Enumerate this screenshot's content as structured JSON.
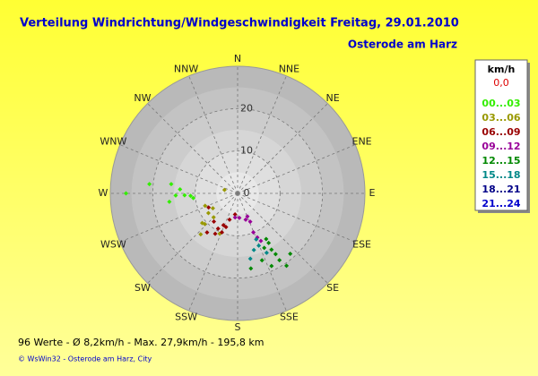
{
  "chart_data": {
    "type": "polar_scatter",
    "title": "Verteilung Windrichtung/Windgeschwindigkeit  Freitag, 29.01.2010",
    "subtitle": "Osterode am Harz",
    "directions": [
      "N",
      "NNE",
      "NE",
      "ENE",
      "E",
      "ESE",
      "SE",
      "SSE",
      "S",
      "SSW",
      "SW",
      "WSW",
      "W",
      "WNW",
      "NW",
      "NNW"
    ],
    "rlim": [
      0,
      30
    ],
    "rticks": [
      0,
      10,
      20
    ],
    "legend_title": "km/h",
    "calm_label": "0,0",
    "series": [
      {
        "name": "00...03",
        "color": "#33ee00",
        "theta": [
          270,
          276,
          278,
          274,
          268,
          267,
          263,
          268,
          264
        ],
        "r": [
          26.3,
          20.9,
          15.8,
          13.6,
          12.5,
          11.1,
          16.2,
          14.6,
          10.5
        ]
      },
      {
        "name": "03...06",
        "color": "#999900",
        "theta": [
          285,
          249,
          236,
          225,
          230,
          204,
          239,
          222,
          227
        ],
        "r": [
          3.2,
          8.2,
          8.3,
          8.0,
          10.9,
          10.4,
          6.8,
          13.0,
          10.6
        ]
      },
      {
        "name": "06...09",
        "color": "#990000",
        "theta": [
          244,
          220,
          209,
          202,
          199,
          209,
          187,
          197,
          204,
          218
        ],
        "r": [
          7.6,
          8.7,
          9.5,
          9.9,
          8.4,
          10.9,
          5.0,
          6.5,
          8.2,
          11.7
        ]
      },
      {
        "name": "09...12",
        "color": "#990099",
        "theta": [
          186,
          163,
          156,
          158,
          156,
          154,
          157,
          176
        ],
        "r": [
          5.7,
          6.5,
          7.3,
          9.9,
          11.4,
          12.5,
          5.9,
          5.8
        ]
      },
      {
        "name": "12...15",
        "color": "#008800",
        "theta": [
          148,
          148,
          149,
          148,
          148,
          155,
          154,
          170,
          146,
          139,
          160
        ],
        "r": [
          12.7,
          13.8,
          15.5,
          16.9,
          18.6,
          18.9,
          14.3,
          18.0,
          20.6,
          18.9,
          16.8
        ]
      },
      {
        "name": "15...18",
        "color": "#008888",
        "theta": [
          158,
          164,
          169,
          158,
          154
        ],
        "r": [
          11.7,
          13.9,
          15.7,
          13.3,
          15.6
        ]
      },
      {
        "name": "18...21",
        "color": "#000088",
        "theta": [],
        "r": []
      },
      {
        "name": "21...24",
        "color": "#0000cc",
        "theta": [],
        "r": []
      }
    ],
    "footer": "96 Werte   -   Ø 8,2km/h  -  Max. 27,9km/h   -   195,8 km",
    "copyright": "© WsWin32  -  Osterode am Harz, City"
  }
}
